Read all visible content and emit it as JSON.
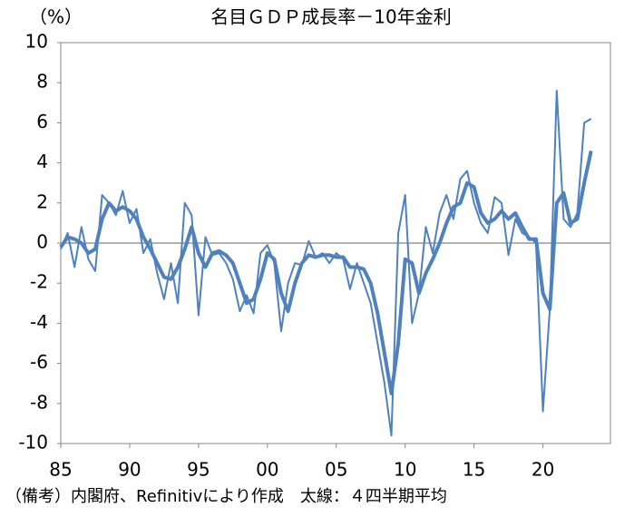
{
  "chart_data": {
    "type": "line",
    "title": "名目ＧＤＰ成長率－10年金利",
    "y_unit": "（%）",
    "note": "（備考）内閣府、Refinitivにより作成　太線：４四半期平均",
    "x": [
      1985.0,
      1985.5,
      1986.0,
      1986.5,
      1987.0,
      1987.5,
      1988.0,
      1988.5,
      1989.0,
      1989.5,
      1990.0,
      1990.5,
      1991.0,
      1991.5,
      1992.0,
      1992.5,
      1993.0,
      1993.5,
      1994.0,
      1994.5,
      1995.0,
      1995.5,
      1996.0,
      1996.5,
      1997.0,
      1997.5,
      1998.0,
      1998.5,
      1999.0,
      1999.5,
      2000.0,
      2000.5,
      2001.0,
      2001.5,
      2002.0,
      2002.5,
      2003.0,
      2003.5,
      2004.0,
      2004.5,
      2005.0,
      2005.5,
      2006.0,
      2006.5,
      2007.0,
      2007.5,
      2008.0,
      2008.5,
      2009.0,
      2009.5,
      2010.0,
      2010.5,
      2011.0,
      2011.5,
      2012.0,
      2012.5,
      2013.0,
      2013.5,
      2014.0,
      2014.5,
      2015.0,
      2015.5,
      2016.0,
      2016.5,
      2017.0,
      2017.5,
      2018.0,
      2018.5,
      2019.0,
      2019.5,
      2020.0,
      2020.5,
      2021.0,
      2021.5,
      2022.0,
      2022.5,
      2023.0,
      2023.5
    ],
    "series": [
      {
        "color": "#4f81bd",
        "width": 2,
        "values": [
          -0.3,
          0.5,
          -1.2,
          0.8,
          -0.8,
          -1.4,
          2.4,
          2.0,
          1.4,
          2.6,
          1.0,
          1.7,
          -0.5,
          0.2,
          -1.5,
          -2.8,
          -1.0,
          -3.0,
          2.0,
          1.4,
          -3.6,
          0.3,
          -0.6,
          -0.5,
          -1.0,
          -1.8,
          -3.4,
          -2.6,
          -3.5,
          -0.5,
          -0.1,
          -1.0,
          -4.4,
          -2.0,
          -1.0,
          -1.1,
          0.1,
          -0.7,
          -0.5,
          -1.0,
          -0.5,
          -0.8,
          -2.3,
          -1.0,
          -2.0,
          -3.0,
          -5.0,
          -7.0,
          -9.6,
          0.5,
          2.4,
          -4.0,
          -2.5,
          0.8,
          -0.5,
          1.5,
          2.4,
          1.2,
          3.2,
          3.6,
          2.0,
          1.0,
          0.5,
          2.3,
          2.0,
          -0.6,
          1.2,
          0.5,
          0.3,
          0.0,
          -8.4,
          -3.3,
          7.6,
          1.2,
          0.8,
          1.5,
          6.0,
          6.2
        ]
      },
      {
        "color": "#4f81bd",
        "width": 4,
        "values": [
          -0.2,
          0.3,
          0.2,
          0.0,
          -0.5,
          -0.3,
          1.2,
          2.0,
          1.6,
          1.8,
          1.6,
          1.2,
          0.3,
          -0.3,
          -1.0,
          -1.7,
          -1.8,
          -1.2,
          -0.3,
          0.8,
          -0.5,
          -1.2,
          -0.5,
          -0.4,
          -0.6,
          -1.0,
          -2.0,
          -3.0,
          -2.8,
          -1.8,
          -0.5,
          -0.8,
          -2.5,
          -3.4,
          -2.0,
          -1.0,
          -0.6,
          -0.7,
          -0.6,
          -0.6,
          -0.7,
          -0.7,
          -1.2,
          -1.2,
          -1.3,
          -2.0,
          -3.5,
          -5.5,
          -7.5,
          -5.0,
          -0.8,
          -1.0,
          -2.5,
          -1.5,
          -0.8,
          0.0,
          1.0,
          1.8,
          2.0,
          3.0,
          2.8,
          1.5,
          1.0,
          1.2,
          1.6,
          1.2,
          1.5,
          0.8,
          0.2,
          0.2,
          -2.5,
          -3.3,
          2.0,
          2.5,
          1.0,
          1.2,
          3.0,
          4.6
        ]
      }
    ],
    "xlim": [
      1985,
      2024.9
    ],
    "xticks": [
      {
        "value": 1985,
        "label": "85"
      },
      {
        "value": 1990,
        "label": "90"
      },
      {
        "value": 1995,
        "label": "95"
      },
      {
        "value": 2000,
        "label": "00"
      },
      {
        "value": 2005,
        "label": "05"
      },
      {
        "value": 2010,
        "label": "10"
      },
      {
        "value": 2015,
        "label": "15"
      },
      {
        "value": 2020,
        "label": "20"
      }
    ],
    "ylim": [
      -10,
      10
    ],
    "yticks": [
      -10,
      -8,
      -6,
      -4,
      -2,
      0,
      2,
      4,
      6,
      8,
      10
    ],
    "zero_line": true
  }
}
